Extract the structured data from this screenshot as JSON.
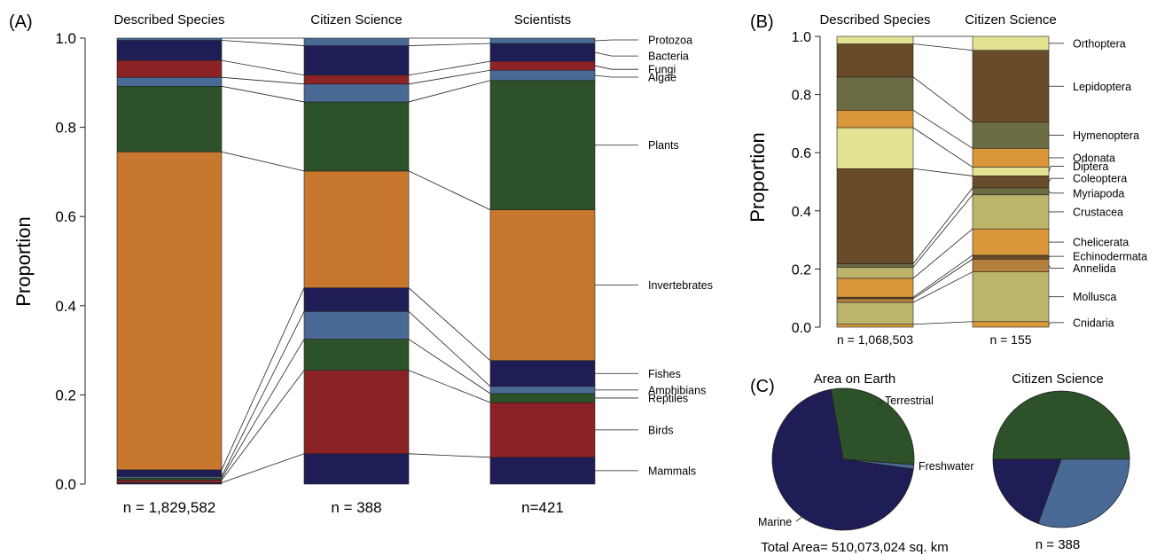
{
  "colors": {
    "protozoa": "#4a6a96",
    "bacteria": "#1f1d56",
    "fungi": "#8b2226",
    "algae": "#4a6a96",
    "plants": "#2d5128",
    "invertebrates": "#c8772f",
    "fishes": "#1f1d56",
    "amphibians": "#4a6a96",
    "reptiles": "#2d5128",
    "birds": "#8b2226",
    "mammals": "#1f1d56",
    "orthoptera": "#e3e293",
    "lepidoptera": "#684b28",
    "hymenoptera": "#6b6c44",
    "odonata": "#d9973a",
    "diptera": "#e3e293",
    "coleoptera": "#684b28",
    "myriapoda": "#6b6c44",
    "crustacea": "#bdb46c",
    "chelicerata": "#d9973a",
    "echinodermata": "#684b28",
    "annelida": "#b47f3d",
    "mollusca": "#bdb46c",
    "cnidaria": "#d9973a",
    "marine": "#1f1d56",
    "terrestrial": "#2d5128",
    "freshwater": "#4a6a96"
  },
  "panels": {
    "A": {
      "label": "(A)",
      "ylabel": "Proportion"
    },
    "B": {
      "label": "(B)",
      "ylabel": "Proportion"
    },
    "C": {
      "label": "(C)"
    }
  },
  "chart_data": [
    {
      "type": "bar",
      "panel": "A",
      "stacked": true,
      "ylabel": "Proportion",
      "ylim": [
        0,
        1
      ],
      "yticks": [
        "0.0",
        "0.2",
        "0.4",
        "0.6",
        "0.8",
        "1.0"
      ],
      "categories": [
        "Described Species",
        "Citizen Science",
        "Scientists"
      ],
      "n_labels": [
        "n = 1,829,582",
        "n = 388",
        "n=421"
      ],
      "series": [
        {
          "name": "Mammals",
          "key": "mammals",
          "values": [
            0.003,
            0.068,
            0.06
          ]
        },
        {
          "name": "Birds",
          "key": "birds",
          "values": [
            0.006,
            0.187,
            0.123
          ]
        },
        {
          "name": "Reptiles",
          "key": "reptiles",
          "values": [
            0.004,
            0.07,
            0.02
          ]
        },
        {
          "name": "Amphibians",
          "key": "amphibians",
          "values": [
            0.004,
            0.062,
            0.016
          ]
        },
        {
          "name": "Fishes",
          "key": "fishes",
          "values": [
            0.015,
            0.053,
            0.058
          ]
        },
        {
          "name": "Invertebrates",
          "key": "invertebrates",
          "values": [
            0.713,
            0.262,
            0.338
          ]
        },
        {
          "name": "Plants",
          "key": "plants",
          "values": [
            0.147,
            0.155,
            0.29
          ]
        },
        {
          "name": "Algae",
          "key": "algae",
          "values": [
            0.02,
            0.04,
            0.023
          ]
        },
        {
          "name": "Fungi",
          "key": "fungi",
          "values": [
            0.038,
            0.02,
            0.02
          ]
        },
        {
          "name": "Bacteria",
          "key": "bacteria",
          "values": [
            0.045,
            0.066,
            0.04
          ]
        },
        {
          "name": "Protozoa",
          "key": "protozoa",
          "values": [
            0.005,
            0.017,
            0.012
          ]
        }
      ]
    },
    {
      "type": "bar",
      "panel": "B",
      "stacked": true,
      "ylabel": "Proportion",
      "ylim": [
        0,
        1
      ],
      "yticks": [
        "0.0",
        "0.2",
        "0.4",
        "0.6",
        "0.8",
        "1.0"
      ],
      "categories": [
        "Described Species",
        "Citizen Science"
      ],
      "n_labels": [
        "n = 1,068,503",
        "n = 155"
      ],
      "series": [
        {
          "name": "Cnidaria",
          "key": "cnidaria",
          "values": [
            0.01,
            0.019
          ]
        },
        {
          "name": "Mollusca",
          "key": "mollusca",
          "values": [
            0.075,
            0.171
          ]
        },
        {
          "name": "Annelida",
          "key": "annelida",
          "values": [
            0.013,
            0.044
          ]
        },
        {
          "name": "Echinodermata",
          "key": "echinodermata",
          "values": [
            0.005,
            0.013
          ]
        },
        {
          "name": "Chelicerata",
          "key": "chelicerata",
          "values": [
            0.065,
            0.091
          ]
        },
        {
          "name": "Crustacea",
          "key": "crustacea",
          "values": [
            0.038,
            0.117
          ]
        },
        {
          "name": "Myriapoda",
          "key": "myriapoda",
          "values": [
            0.012,
            0.024
          ]
        },
        {
          "name": "Coleoptera",
          "key": "coleoptera",
          "values": [
            0.327,
            0.041
          ]
        },
        {
          "name": "Diptera",
          "key": "diptera",
          "values": [
            0.141,
            0.03
          ]
        },
        {
          "name": "Odonata",
          "key": "odonata",
          "values": [
            0.06,
            0.065
          ]
        },
        {
          "name": "Hymenoptera",
          "key": "hymenoptera",
          "values": [
            0.114,
            0.09
          ]
        },
        {
          "name": "Lepidoptera",
          "key": "lepidoptera",
          "values": [
            0.114,
            0.247
          ]
        },
        {
          "name": "Orthoptera",
          "key": "orthoptera",
          "values": [
            0.026,
            0.048
          ]
        }
      ]
    },
    {
      "type": "pie",
      "panel": "C",
      "title": "Area on Earth",
      "footer": "Total Area= 510,073,024 sq. km",
      "series": [
        {
          "name": "Terrestrial",
          "key": "terrestrial",
          "value": 0.29
        },
        {
          "name": "Freshwater",
          "key": "freshwater",
          "value": 0.01
        },
        {
          "name": "Marine",
          "key": "marine",
          "value": 0.7
        }
      ]
    },
    {
      "type": "pie",
      "panel": "C",
      "title": "Citizen Science",
      "footer": "n = 388",
      "series": [
        {
          "name": "Terrestrial",
          "key": "terrestrial",
          "value": 0.5
        },
        {
          "name": "Freshwater",
          "key": "freshwater",
          "value": 0.305
        },
        {
          "name": "Marine",
          "key": "marine",
          "value": 0.195
        }
      ]
    }
  ]
}
